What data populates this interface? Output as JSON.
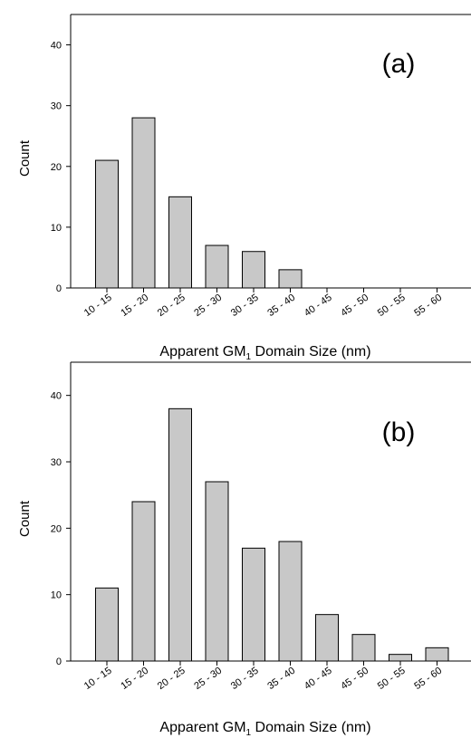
{
  "chart_data": [
    {
      "type": "bar",
      "panel_label": "(a)",
      "categories": [
        "10 - 15",
        "15 - 20",
        "20 - 25",
        "25 - 30",
        "30 - 35",
        "35 - 40",
        "40 - 45",
        "45 - 50",
        "50 - 55",
        "55 - 60"
      ],
      "values": [
        21,
        28,
        15,
        7,
        6,
        3,
        0,
        0,
        0,
        0
      ],
      "ylabel": "Count",
      "xlabel": {
        "prefix": "Apparent GM",
        "subscript": "1",
        "suffix": " Domain Size (nm)"
      },
      "ylim": [
        0,
        45
      ],
      "yticks": [
        "0",
        "10",
        "20",
        "30",
        "40"
      ],
      "grid": false,
      "bar_color": "#c8c8c8"
    },
    {
      "type": "bar",
      "panel_label": "(b)",
      "categories": [
        "10 - 15",
        "15 - 20",
        "20 - 25",
        "25 - 30",
        "30 - 35",
        "35 - 40",
        "40 - 45",
        "45 - 50",
        "50 - 55",
        "55 - 60"
      ],
      "values": [
        11,
        24,
        38,
        27,
        17,
        18,
        7,
        4,
        1,
        2
      ],
      "ylabel": "Count",
      "xlabel": {
        "prefix": "Apparent GM",
        "subscript": "1",
        "suffix": " Domain Size (nm)"
      },
      "ylim": [
        0,
        45
      ],
      "yticks": [
        "0",
        "10",
        "20",
        "30",
        "40"
      ],
      "grid": false,
      "bar_color": "#c8c8c8"
    }
  ]
}
